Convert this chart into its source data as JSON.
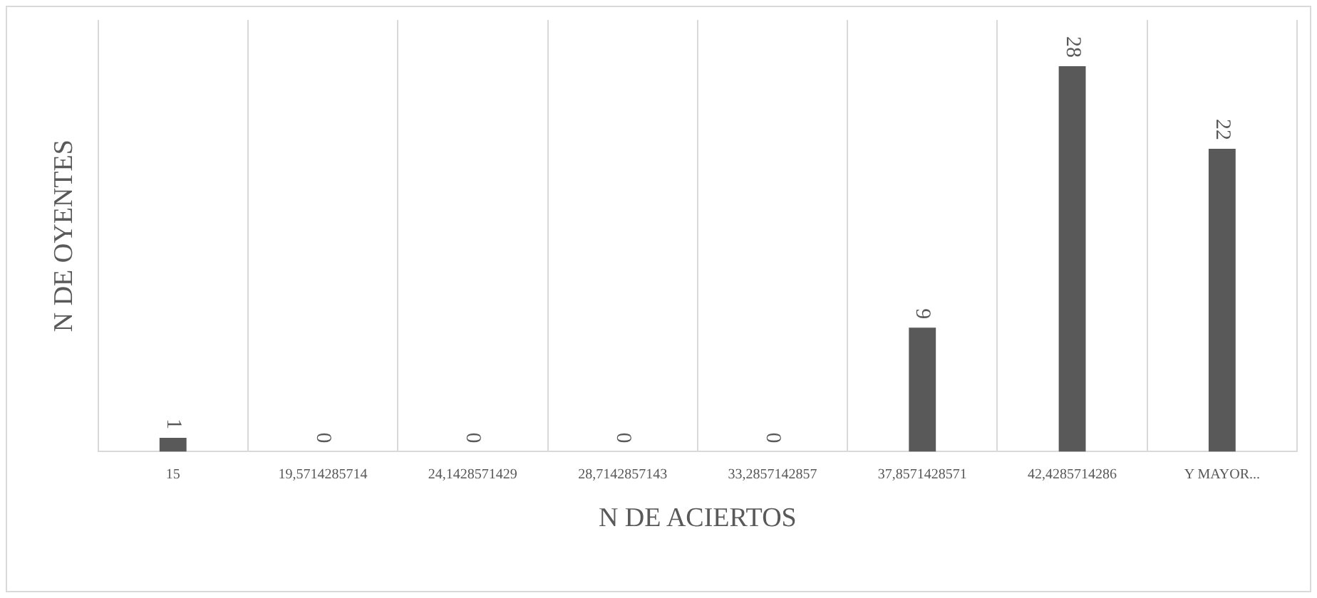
{
  "chart_data": {
    "type": "bar",
    "xlabel": "N DE ACIERTOS",
    "ylabel": "N DE OYENTES",
    "categories": [
      "15",
      "19,5714285714",
      "24,1428571429",
      "28,7142857143",
      "33,2857142857",
      "37,8571428571",
      "42,4285714286",
      "Y MAYOR..."
    ],
    "values": [
      1,
      0,
      0,
      0,
      0,
      9,
      28,
      22
    ],
    "color": "#595959",
    "data_labels": true,
    "grid": "x",
    "legend": false
  }
}
